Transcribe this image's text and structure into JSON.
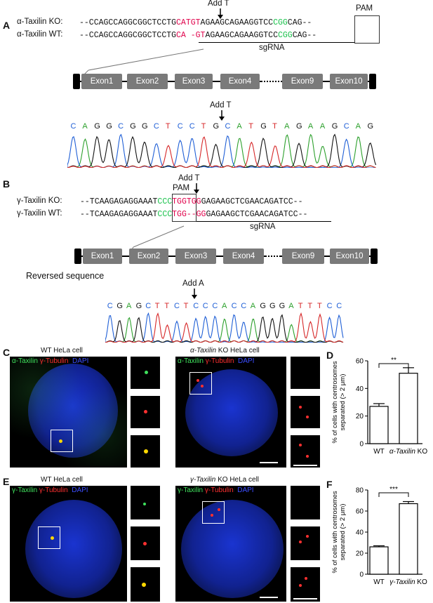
{
  "panelA": {
    "letter": "A",
    "add_t": "Add T",
    "pam": "PAM",
    "ko_label": "α-Taxilin KO:",
    "wt_label": "α-Taxilin WT:",
    "ko_seq": {
      "pre": "--CCAGCCAGGCGGCTCCTG",
      "mut": "CATGT",
      "mid": "AGAAGCAGAAGGTCC",
      "pam": "CGG",
      "post": "CAG--"
    },
    "wt_seq": {
      "pre": "--CCAGCCAGGCGGCTCCTG",
      "mut": "CA -GT",
      "mid": "AGAAGCAGAAGGTCC",
      "pam": "CGG",
      "post": "CAG--"
    },
    "sgrna": "sgRNA",
    "exons": [
      "Exon1",
      "Exon2",
      "Exon3",
      "Exon4",
      "Exon9",
      "Exon10"
    ],
    "chrom_add": "Add T",
    "chrom_seq": [
      "C",
      "A",
      "G",
      "G",
      "C",
      "G",
      "G",
      "C",
      "T",
      "C",
      "C",
      "T",
      "G",
      "C",
      "A",
      "T",
      "G",
      "T",
      "A",
      "G",
      "A",
      "A",
      "G",
      "C",
      "A",
      "G"
    ]
  },
  "panelB": {
    "letter": "B",
    "add_t": "Add T",
    "pam": "PAM",
    "ko_label": "γ-Taxilin KO:",
    "wt_label": "γ-Taxilin WT:",
    "ko_seq": {
      "pre": "--TCAAGAGAGGAAAT",
      "pam": "CCC",
      "mut": "TGGTGG",
      "post": "GAGAAGCTCGAACAGATCC--"
    },
    "wt_seq": {
      "pre": "--TCAAGAGAGGAAAT",
      "pam": "CCC",
      "mut": "TGG--GG",
      "post": "GAGAAGCTCGAACAGATCC--"
    },
    "sgrna": "sgRNA",
    "exons": [
      "Exon1",
      "Exon2",
      "Exon3",
      "Exon4",
      "Exon9",
      "Exon10"
    ],
    "reversed": "Reversed sequence",
    "chrom_add": "Add A",
    "chrom_seq": [
      "C",
      "G",
      "A",
      "G",
      "C",
      "T",
      "T",
      "C",
      "T",
      "C",
      "C",
      "C",
      "A",
      "C",
      "C",
      "A",
      "G",
      "G",
      "G",
      "A",
      "T",
      "T",
      "T",
      "C",
      "C"
    ]
  },
  "panelC": {
    "letter": "C",
    "wt_title": "WT HeLa cell",
    "ko_title_italic": "α-Taxilin",
    "ko_title_rest": " KO HeLa cell",
    "ch1": "α-Taxilin",
    "ch2": "γ-Tubulin",
    "ch3": "DAPI"
  },
  "panelE": {
    "letter": "E",
    "wt_title": "WT HeLa cell",
    "ko_title_italic": "γ-Taxilin",
    "ko_title_rest": " KO HeLa cell",
    "ch1": "γ-Taxilin",
    "ch2": "γ-Tubulin",
    "ch3": "DAPI"
  },
  "colors": {
    "mutation": "#e0004a",
    "pam": "#19c24b",
    "exon": "#7a7a7a",
    "A": "#2ca02c",
    "C": "#1f5fd6",
    "G": "#111111",
    "T": "#d62728"
  },
  "chart_data": [
    {
      "type": "bar",
      "panel": "D",
      "categories": [
        "WT",
        "α-Taxilin KO"
      ],
      "values": [
        27,
        51
      ],
      "errors": [
        2,
        4
      ],
      "ylabel": "% of cells with centrosomes separated (> 2 μm)",
      "ylim": [
        0,
        60
      ],
      "yticks": [
        0,
        20,
        40,
        60
      ],
      "significance": "**"
    },
    {
      "type": "bar",
      "panel": "F",
      "categories": [
        "WT",
        "γ-Taxilin KO"
      ],
      "values": [
        26,
        67
      ],
      "errors": [
        1,
        2
      ],
      "ylabel": "% of cells with centrosomes separated (> 2 μm)",
      "ylim": [
        0,
        80
      ],
      "yticks": [
        0,
        20,
        40,
        60,
        80
      ],
      "significance": "***"
    }
  ]
}
